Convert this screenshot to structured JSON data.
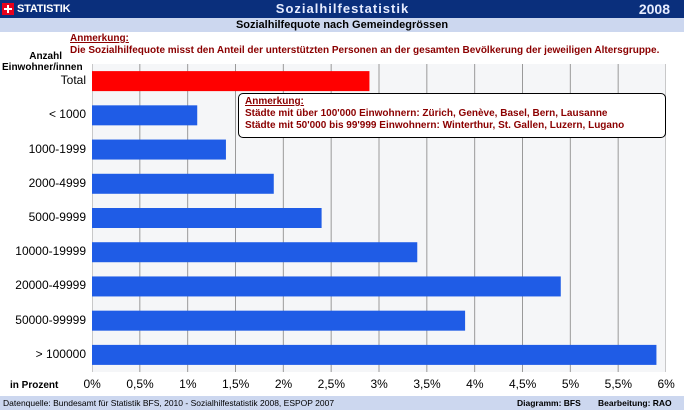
{
  "header": {
    "brand": "STATISTIK SCHWEIZ",
    "title": "Sozialhilfestatistik",
    "year": "2008"
  },
  "subtitle": "Sozialhilfequote nach Gemeindegrössen",
  "note": {
    "title": "Anmerkung:",
    "text": "Die Sozialhilfequote misst den Anteil der unterstützten Personen an der gesamten Bevölkerung der jeweiligen Altersgruppe."
  },
  "annotation": {
    "title": "Anmerkung:",
    "line1": "Städte mit über 100'000 Einwohnern: Zürich, Genève, Basel, Bern, Lausanne",
    "line2": "Städte mit 50'000 bis 99'999 Einwohnern: Winterthur, St. Gallen, Luzern, Lugano"
  },
  "footer": {
    "source": "Datenquelle: Bundesamt für Statistik BFS, 2010 - Sozialhilfestatistik 2008, ESPOP 2007",
    "diagram": "Diagramm: BFS",
    "editing": "Bearbeitung: RAO"
  },
  "chart_data": {
    "type": "bar",
    "orientation": "horizontal",
    "category_header": "Anzahl Einwohner/innen",
    "xlabel": "in Prozent",
    "categories": [
      "Total",
      "< 1000",
      "1000-1999",
      "2000-4999",
      "5000-9999",
      "10000-19999",
      "20000-49999",
      "50000-99999",
      "> 100000"
    ],
    "values": [
      2.9,
      1.1,
      1.4,
      1.9,
      2.4,
      3.4,
      4.9,
      3.9,
      5.9
    ],
    "colors": [
      "#ff0000",
      "#1f5ce6",
      "#1f5ce6",
      "#1f5ce6",
      "#1f5ce6",
      "#1f5ce6",
      "#1f5ce6",
      "#1f5ce6",
      "#1f5ce6"
    ],
    "xlim": [
      0,
      6
    ],
    "x_ticks": [
      "0%",
      "0,5%",
      "1%",
      "1,5%",
      "2%",
      "2,5%",
      "3%",
      "3,5%",
      "4%",
      "4,5%",
      "5%",
      "5,5%",
      "6%"
    ],
    "grid": "vertical",
    "legend": "none"
  }
}
